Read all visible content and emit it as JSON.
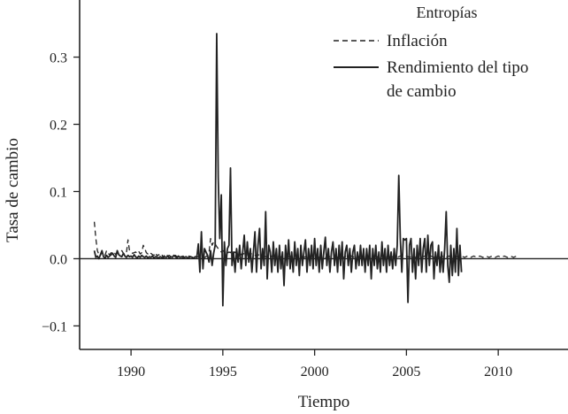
{
  "chart_data": {
    "type": "line",
    "title": "",
    "xlabel": "Tiempo",
    "ylabel": "Tasa de cambio",
    "xlim": [
      1987.2,
      2013.8
    ],
    "ylim": [
      -0.135,
      0.385
    ],
    "x_ticks": [
      {
        "value": 1990,
        "label": "1990"
      },
      {
        "value": 1995,
        "label": "1995"
      },
      {
        "value": 2000,
        "label": "2000"
      },
      {
        "value": 2005,
        "label": "2005"
      },
      {
        "value": 2010,
        "label": "2010"
      }
    ],
    "y_ticks": [
      {
        "value": 0.3,
        "label": "0.3"
      },
      {
        "value": 0.2,
        "label": "0.2"
      },
      {
        "value": 0.1,
        "label": "0.1"
      },
      {
        "value": 0.0,
        "label": "0.0"
      },
      {
        "value": -0.1,
        "label": "−0.1"
      }
    ],
    "zero_line": true,
    "grid": false,
    "legend": {
      "title": "Entropías",
      "placement": "top-right",
      "entries": [
        {
          "series": "inflacion",
          "line1": "Inflación",
          "line2": ""
        },
        {
          "series": "rendimiento",
          "line1": "Rendimiento del tipo",
          "line2": "de cambio"
        }
      ]
    },
    "series": [
      {
        "id": "inflacion",
        "name": "Inflación",
        "style": "dashed",
        "color": "#222222",
        "x_start": 1988.0,
        "x_step": 0.08333,
        "values": [
          0.055,
          0.03,
          0.012,
          0.006,
          0.005,
          0.01,
          0.004,
          0.005,
          0.012,
          0.008,
          0.006,
          0.009,
          0.008,
          0.01,
          0.006,
          0.008,
          0.009,
          0.01,
          0.012,
          0.008,
          0.006,
          0.009,
          0.028,
          0.012,
          0.01,
          0.008,
          0.009,
          0.01,
          0.008,
          0.011,
          0.007,
          0.009,
          0.02,
          0.015,
          0.009,
          0.007,
          0.005,
          0.008,
          0.006,
          0.005,
          0.009,
          0.004,
          0.006,
          0.005,
          0.007,
          0.002,
          0.006,
          0.007,
          0.004,
          0.005,
          0.003,
          0.006,
          0.004,
          0.005,
          0.003,
          0.004,
          0.002,
          0.003,
          0.004,
          0.002,
          0.003,
          0.002,
          0.004,
          0.003,
          0.002,
          0.004,
          0.003,
          0.002,
          0.003,
          0.002,
          0.003,
          0.004,
          0.002,
          0.003,
          0.005,
          0.01,
          0.03,
          0.02,
          0.025,
          0.022,
          0.018,
          0.015,
          0.012,
          0.01,
          0.012,
          0.01,
          0.009,
          0.008,
          0.01,
          0.009,
          0.012,
          0.008,
          0.01,
          0.007,
          0.008,
          0.009,
          0.006,
          0.008,
          0.007,
          0.006,
          0.005,
          0.007,
          0.006,
          0.008,
          0.006,
          0.005,
          0.004,
          0.006,
          0.005,
          0.004,
          0.005,
          0.004,
          0.003,
          0.004,
          0.005,
          0.003,
          0.004,
          0.003,
          0.004,
          0.002,
          0.003,
          0.004,
          0.003,
          0.002,
          0.003,
          0.004,
          0.002,
          0.003,
          0.004,
          0.003,
          0.002,
          0.004,
          0.003,
          0.002,
          0.003,
          0.004,
          0.003,
          0.002,
          0.003,
          0.004,
          0.002,
          0.003,
          0.004,
          0.003,
          0.002,
          0.004,
          0.003,
          0.002,
          0.003,
          0.004,
          0.003,
          0.002,
          0.003,
          0.004,
          0.003,
          0.002,
          0.003,
          0.004,
          0.003,
          0.002,
          0.003,
          0.004,
          0.003,
          0.002,
          0.003,
          0.005,
          0.006,
          0.005,
          0.004,
          0.003,
          0.002,
          0.003,
          0.004,
          0.003,
          0.002,
          0.003,
          0.004,
          0.003,
          0.002,
          0.003,
          0.004,
          0.003,
          0.002,
          0.003,
          0.004,
          0.003,
          0.002,
          0.003,
          0.004,
          0.003,
          0.002,
          0.003,
          0.004,
          0.003,
          0.002,
          0.003,
          0.004,
          0.003,
          0.002,
          0.003,
          0.004,
          0.003,
          0.002,
          0.003,
          0.004,
          0.003,
          0.002,
          0.003,
          0.004,
          0.003,
          0.002,
          0.003,
          0.004,
          0.003,
          0.002,
          0.003,
          0.004,
          0.003,
          0.002,
          0.003,
          0.004,
          0.003,
          0.002,
          0.003,
          0.004,
          0.003,
          0.002,
          0.003,
          0.004,
          0.003,
          0.002,
          0.003,
          0.004,
          0.003,
          0.002,
          0.003,
          0.004,
          0.003,
          0.002,
          0.003,
          0.004,
          0.003,
          0.002,
          0.003,
          0.004,
          0.003,
          0.002,
          0.003,
          0.004,
          0.003,
          0.002,
          0.003,
          0.004,
          0.003,
          0.002,
          0.003,
          0.004,
          0.003,
          0.002,
          0.003,
          0.004,
          0.003,
          0.002,
          0.003,
          0.004,
          0.003,
          0.002,
          0.003,
          0.004,
          0.003,
          0.002,
          0.003,
          0.004,
          0.003,
          0.002,
          0.003,
          0.004
        ]
      },
      {
        "id": "rendimiento",
        "name": "Rendimiento del tipo de cambio",
        "style": "solid",
        "color": "#222222",
        "x_start": 1988.0,
        "x_step": 0.08333,
        "values": [
          0.012,
          0.002,
          0.004,
          0.0,
          0.006,
          0.012,
          0.003,
          0.001,
          0.005,
          0.002,
          0.004,
          0.006,
          0.008,
          0.004,
          0.002,
          0.012,
          0.006,
          0.004,
          0.003,
          0.008,
          0.004,
          0.002,
          0.005,
          0.003,
          0.004,
          0.002,
          0.006,
          0.003,
          0.001,
          0.004,
          0.002,
          0.005,
          0.003,
          0.002,
          0.004,
          0.001,
          0.003,
          0.002,
          0.004,
          0.001,
          0.003,
          0.002,
          0.001,
          0.003,
          0.002,
          0.001,
          0.003,
          0.002,
          0.004,
          0.001,
          0.003,
          0.002,
          0.005,
          0.003,
          0.001,
          0.004,
          0.002,
          0.003,
          0.001,
          0.002,
          0.003,
          0.001,
          0.002,
          0.003,
          0.002,
          0.001,
          0.003,
          0.002,
          0.022,
          -0.02,
          0.04,
          -0.015,
          0.015,
          0.01,
          0.005,
          -0.005,
          0.012,
          -0.01,
          0.008,
          0.02,
          0.335,
          0.12,
          0.03,
          0.095,
          -0.07,
          0.025,
          -0.01,
          0.015,
          0.02,
          0.135,
          -0.01,
          0.01,
          -0.02,
          0.015,
          -0.005,
          0.02,
          -0.015,
          0.01,
          0.035,
          -0.01,
          0.025,
          -0.005,
          0.015,
          -0.02,
          0.01,
          0.04,
          -0.02,
          0.02,
          0.045,
          -0.015,
          0.015,
          -0.01,
          0.07,
          -0.03,
          0.02,
          0.01,
          -0.02,
          0.025,
          -0.01,
          0.015,
          -0.02,
          0.02,
          -0.015,
          0.01,
          -0.04,
          0.02,
          -0.01,
          0.028,
          -0.015,
          0.01,
          -0.02,
          0.025,
          -0.01,
          0.015,
          -0.025,
          0.02,
          -0.01,
          0.01,
          0.028,
          -0.02,
          0.015,
          -0.01,
          0.02,
          -0.015,
          0.03,
          -0.01,
          0.015,
          -0.02,
          0.02,
          -0.015,
          0.01,
          0.032,
          -0.01,
          0.015,
          -0.02,
          0.01,
          0.025,
          -0.01,
          0.015,
          -0.02,
          0.02,
          -0.01,
          0.025,
          -0.03,
          0.01,
          0.02,
          -0.01,
          0.015,
          -0.02,
          0.01,
          0.02,
          -0.015,
          0.01,
          -0.01,
          0.02,
          -0.01,
          0.015,
          -0.02,
          0.015,
          -0.01,
          0.02,
          -0.03,
          0.015,
          -0.01,
          0.02,
          -0.015,
          0.01,
          -0.02,
          0.025,
          -0.01,
          0.015,
          -0.02,
          0.02,
          -0.01,
          0.01,
          -0.015,
          0.015,
          -0.01,
          0.02,
          0.124,
          0.03,
          -0.02,
          0.03,
          0.028,
          0.03,
          -0.065,
          0.02,
          0.03,
          -0.02,
          0.015,
          -0.03,
          0.02,
          -0.01,
          0.03,
          -0.02,
          0.015,
          0.03,
          -0.02,
          0.035,
          -0.01,
          0.02,
          0.025,
          -0.03,
          0.01,
          -0.01,
          0.02,
          -0.02,
          0.01,
          -0.02,
          0.015,
          0.07,
          -0.01,
          -0.035,
          0.02,
          -0.025,
          0.015,
          -0.02,
          0.045,
          -0.025,
          0.02,
          -0.02
        ]
      }
    ]
  }
}
